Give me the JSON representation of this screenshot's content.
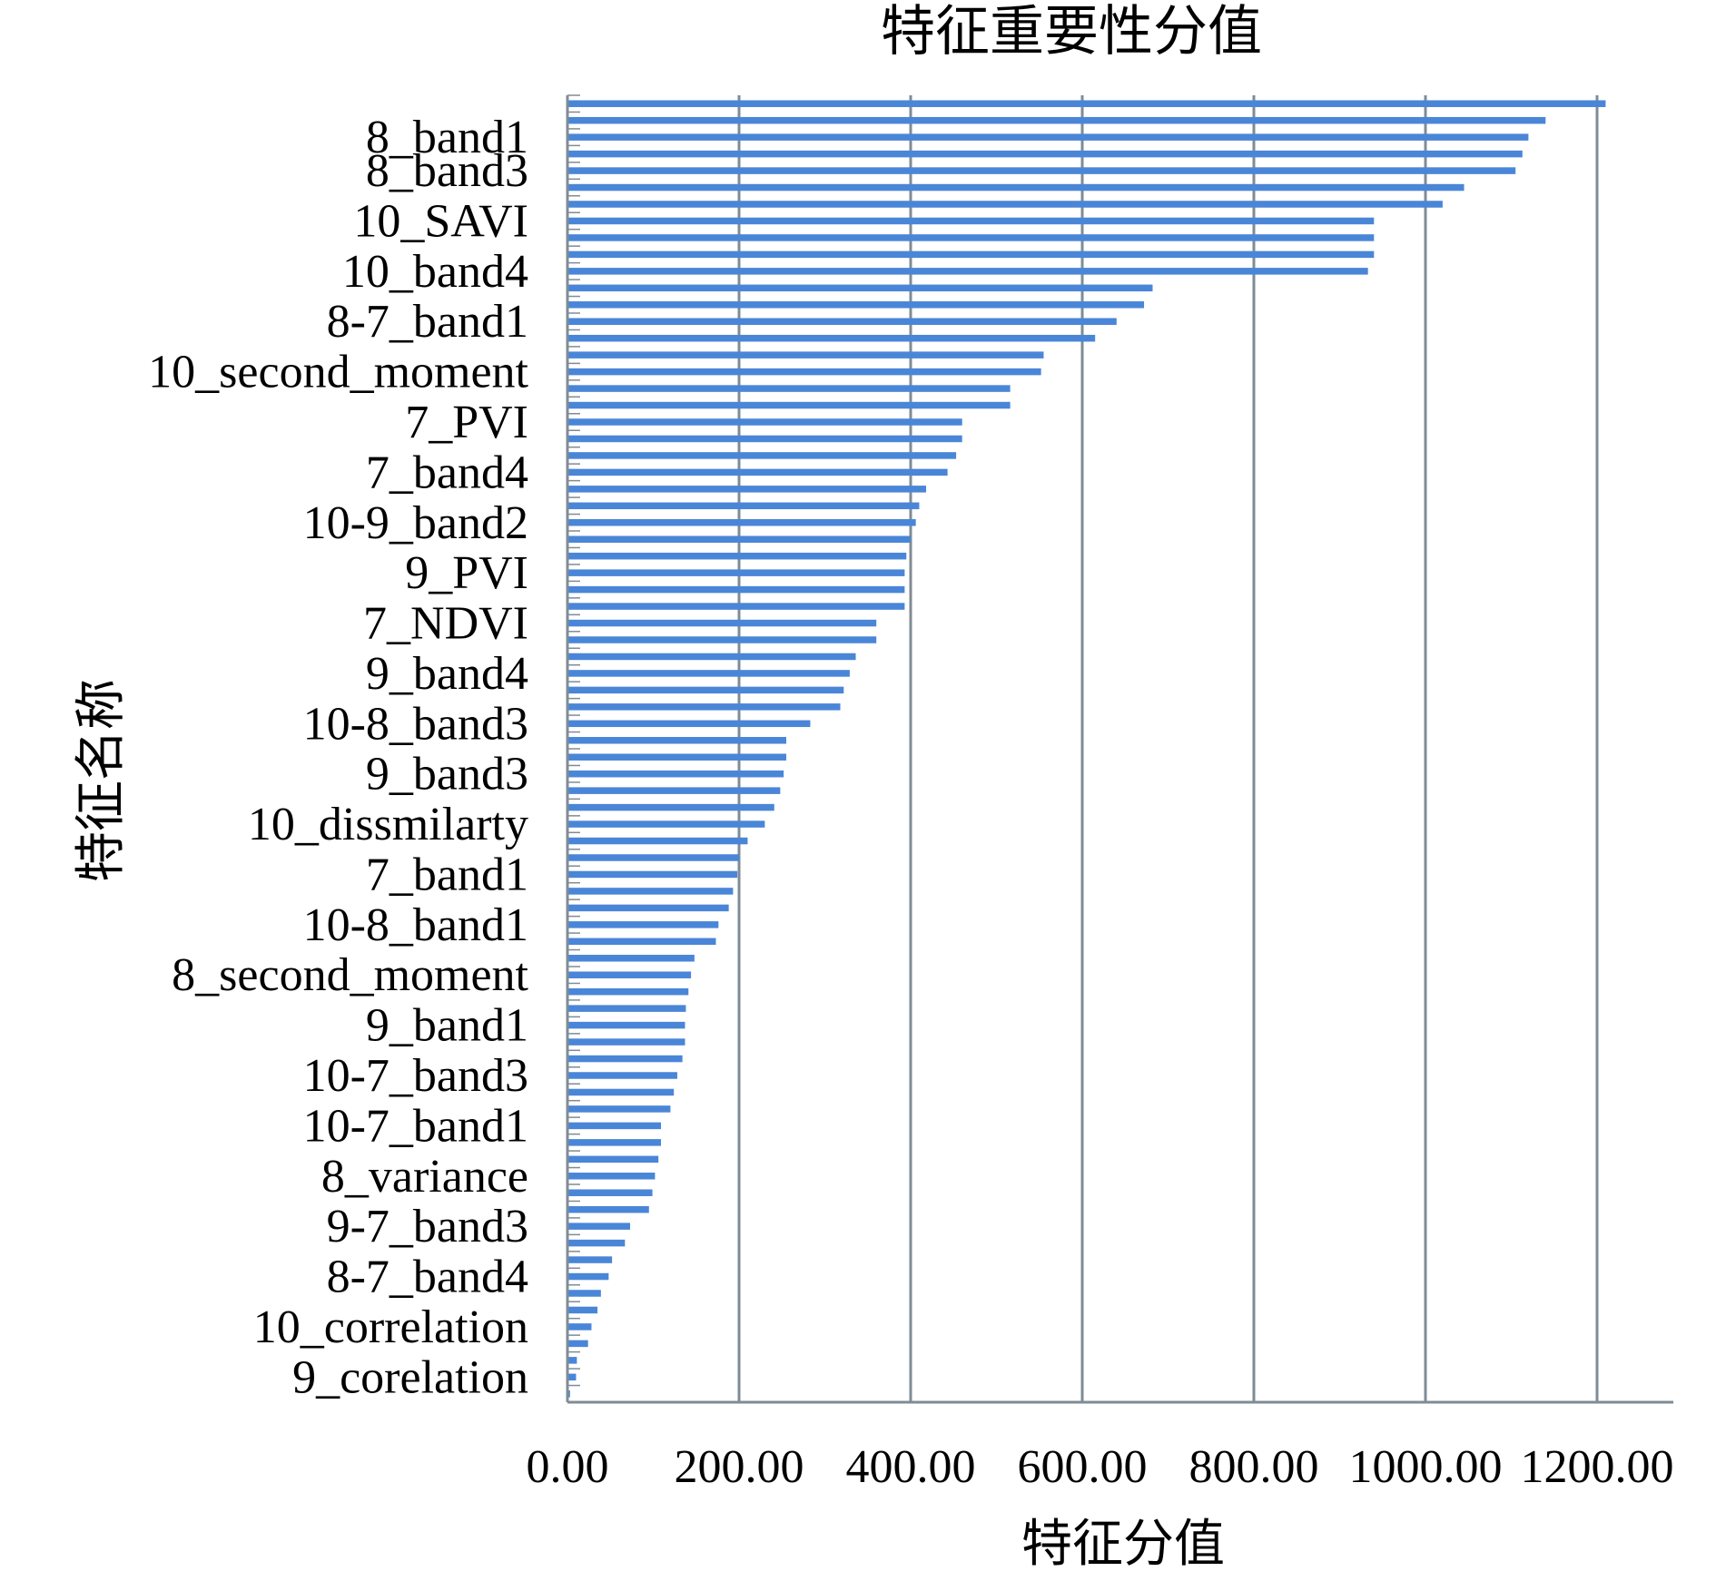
{
  "chart_data": {
    "type": "bar",
    "orientation": "horizontal",
    "title": "特征重要性分值",
    "xlabel": "特征分值",
    "ylabel": "特征名称",
    "xlim": [
      0,
      1300
    ],
    "xticks": [
      0,
      200,
      400,
      600,
      800,
      1000,
      1200
    ],
    "xtick_labels": [
      "0.00",
      "200.00",
      "400.00",
      "600.00",
      "800.00",
      "1000.00",
      "1200.00"
    ],
    "grid": "vertical",
    "bar_color": "#4a86d8",
    "axis_color": "#7f8c95",
    "values": [
      1210,
      1140,
      1120,
      1113,
      1105,
      1045,
      1020,
      940,
      940,
      940,
      933,
      682,
      672,
      640,
      615,
      555,
      552,
      516,
      516,
      460,
      460,
      453,
      443,
      418,
      410,
      406,
      400,
      395,
      393,
      393,
      393,
      360,
      360,
      336,
      329,
      322,
      318,
      283,
      255,
      255,
      252,
      248,
      241,
      230,
      210,
      200,
      198,
      193,
      188,
      176,
      173,
      148,
      144,
      141,
      138,
      137,
      137,
      134,
      128,
      124,
      120,
      109,
      109,
      106,
      102,
      99,
      95,
      73,
      67,
      52,
      48,
      39,
      35,
      28,
      24,
      11,
      10,
      3
    ],
    "labeled_categories": [
      {
        "label": "8_band1",
        "index": 2
      },
      {
        "label": "8_band3",
        "index": 4
      },
      {
        "label": "10_SAVI",
        "index": 7
      },
      {
        "label": "10_band4",
        "index": 10
      },
      {
        "label": "8-7_band1",
        "index": 13
      },
      {
        "label": "10_second_moment",
        "index": 16
      },
      {
        "label": "7_PVI",
        "index": 19
      },
      {
        "label": "7_band4",
        "index": 22
      },
      {
        "label": "10-9_band2",
        "index": 25
      },
      {
        "label": "9_PVI",
        "index": 28
      },
      {
        "label": "7_NDVI",
        "index": 31
      },
      {
        "label": "9_band4",
        "index": 34
      },
      {
        "label": "10-8_band3",
        "index": 37
      },
      {
        "label": "9_band3",
        "index": 40
      },
      {
        "label": "10_dissmilarty",
        "index": 43
      },
      {
        "label": "7_band1",
        "index": 46
      },
      {
        "label": "10-8_band1",
        "index": 49
      },
      {
        "label": "8_second_moment",
        "index": 52
      },
      {
        "label": "9_band1",
        "index": 55
      },
      {
        "label": "10-7_band3",
        "index": 58
      },
      {
        "label": "10-7_band1",
        "index": 61
      },
      {
        "label": "8_variance",
        "index": 64
      },
      {
        "label": "9-7_band3",
        "index": 67
      },
      {
        "label": "8-7_band4",
        "index": 70
      },
      {
        "label": "10_correlation",
        "index": 73
      },
      {
        "label": "9_corelation",
        "index": 76
      }
    ]
  }
}
